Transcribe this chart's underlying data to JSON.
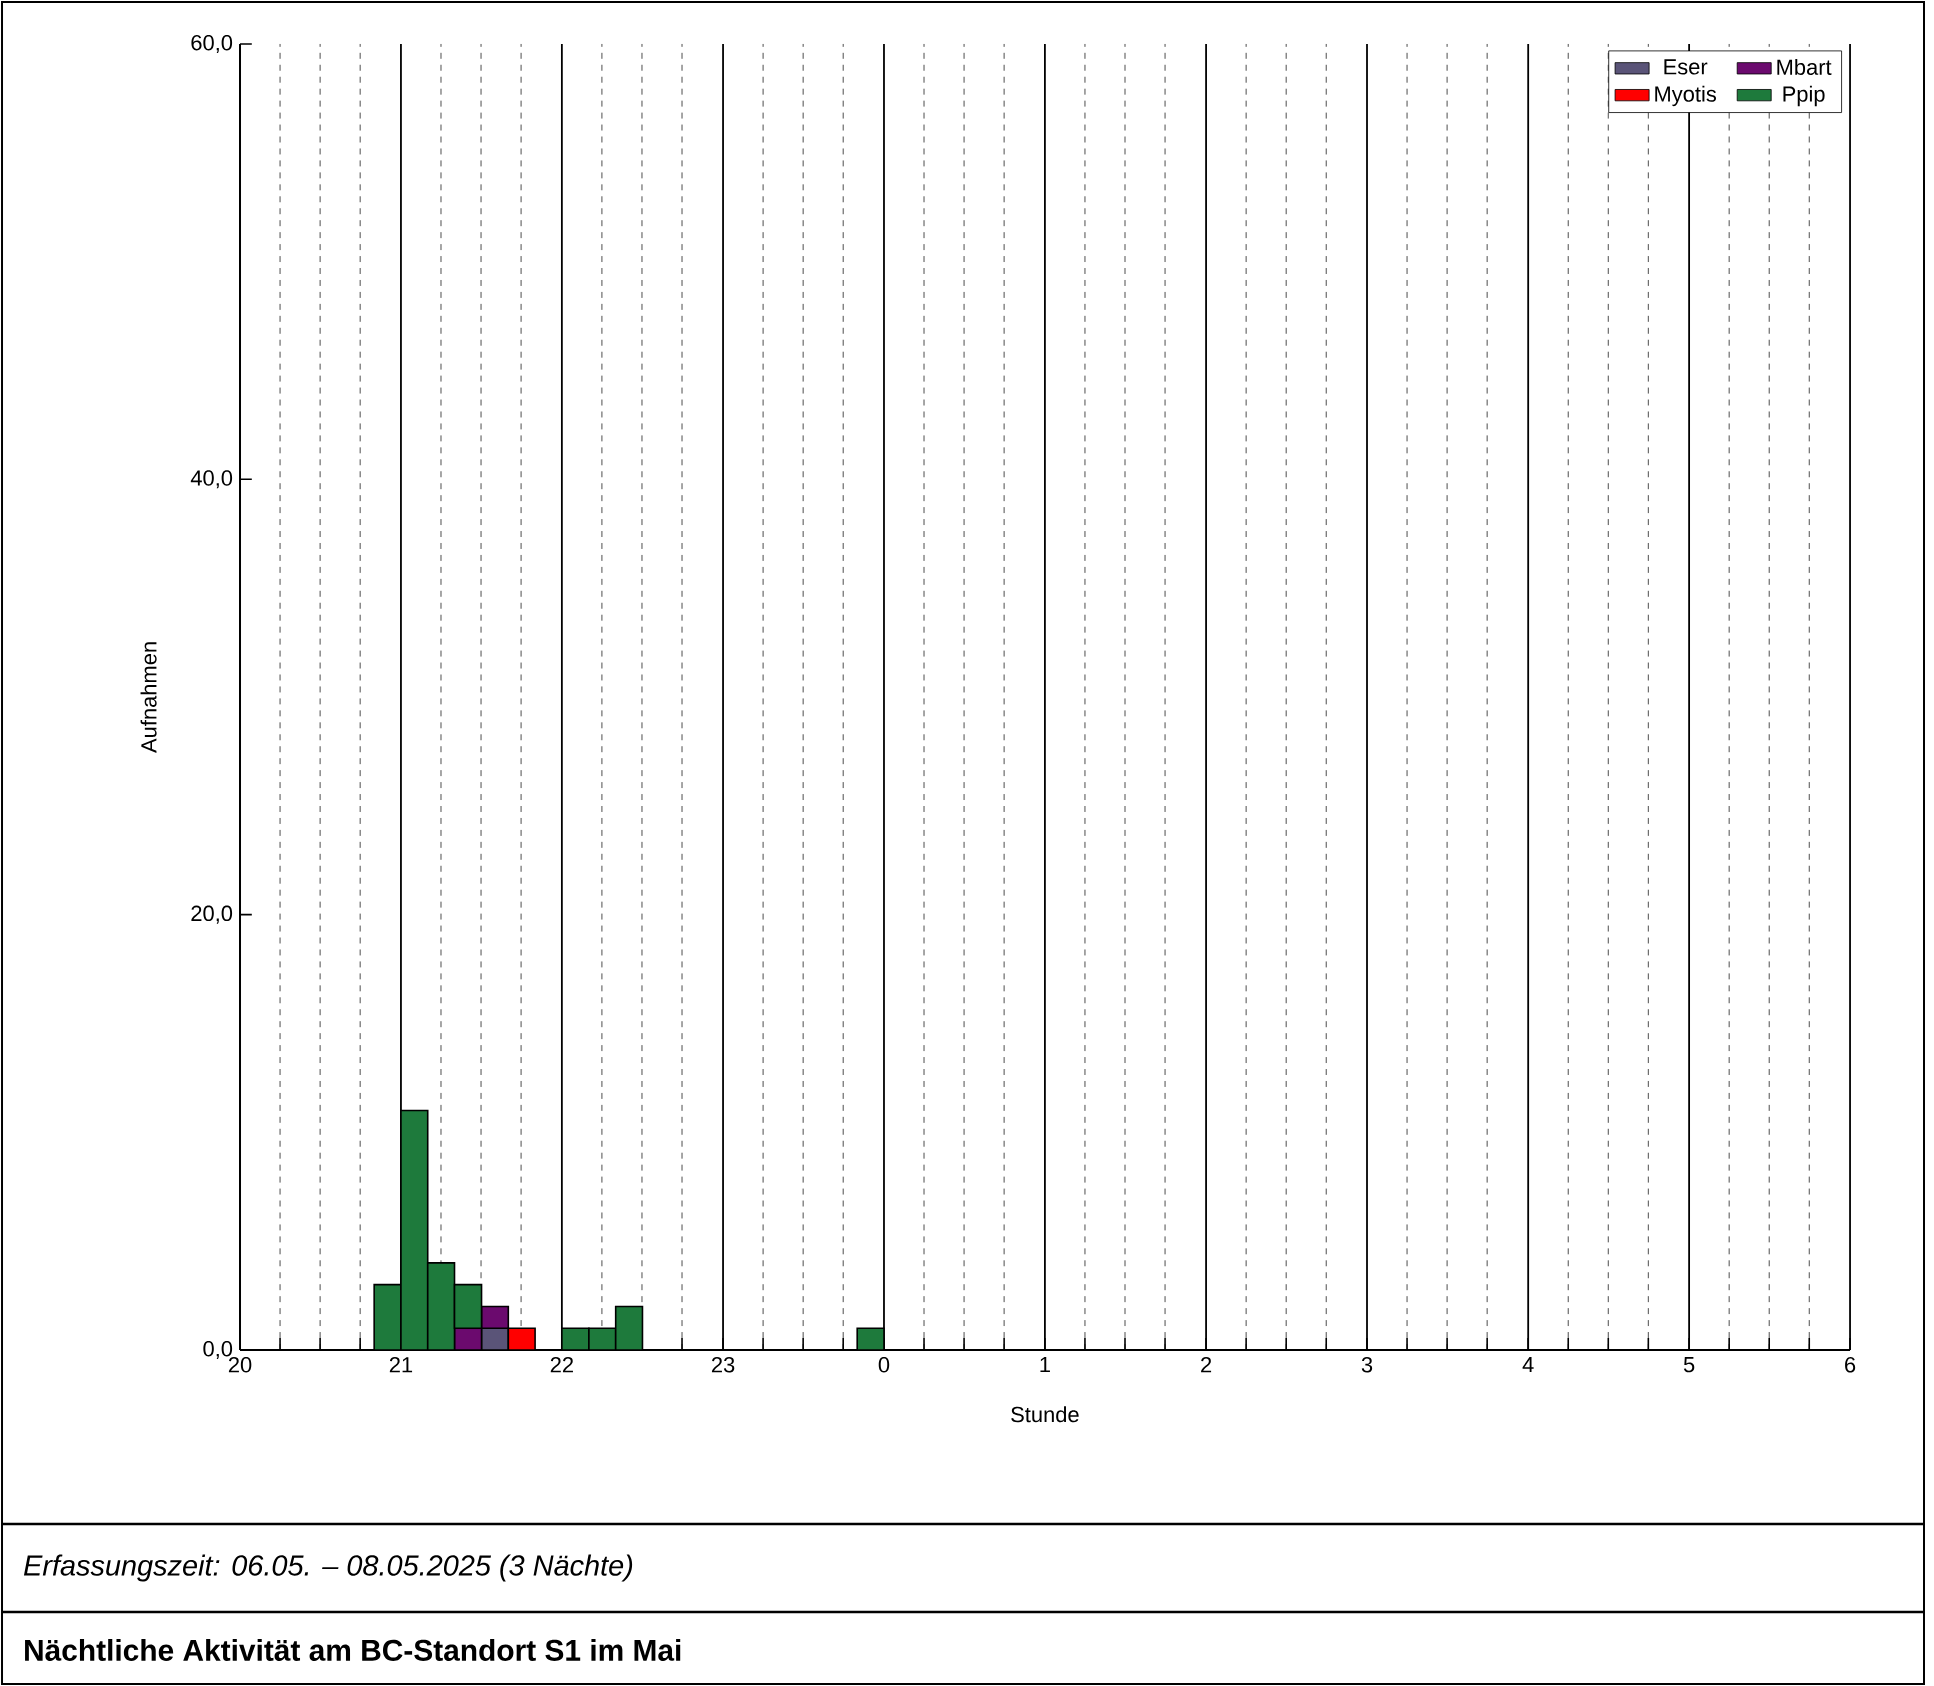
{
  "chart_data": {
    "type": "bar",
    "title": "Nächtliche Aktivität am BC-Standort S1 im Mai",
    "annotations": [
      "Erfassungszeit: 06.05. – 08.05.2025 (3 Nächte)"
    ],
    "xlabel": "Stunde",
    "ylabel": "Aufnahmen",
    "stacked": true,
    "x": [
      "2025-05-06T20:55",
      "2025-05-06T21:05",
      "2025-05-06T21:15",
      "2025-05-06T21:25",
      "2025-05-06T21:35",
      "2025-05-06T21:45",
      "2025-05-06T21:55",
      "2025-05-06T22:05",
      "2025-05-06T22:15",
      "2025-05-06T22:25",
      "2025-05-06T22:35",
      "2025-05-06T22:45",
      "2025-05-06T22:55",
      "2025-05-06T23:05",
      "2025-05-06T23:15",
      "2025-05-06T23:25",
      "2025-05-06T23:35",
      "2025-05-06T23:45",
      "2025-05-06T23:55"
    ],
    "series": [
      {
        "name": "Eser",
        "color": "#5a5478",
        "values": [
          0,
          0,
          0,
          0,
          1,
          0,
          0,
          0,
          0,
          0,
          0,
          0,
          0,
          0,
          0,
          0,
          0,
          0,
          0
        ]
      },
      {
        "name": "Mbart",
        "color": "#6b0a6e",
        "values": [
          0,
          0,
          0,
          1,
          1,
          0,
          0,
          0,
          0,
          0,
          0,
          0,
          0,
          0,
          0,
          0,
          0,
          0,
          0
        ]
      },
      {
        "name": "Myotis",
        "color": "#ff0000",
        "values": [
          0,
          0,
          0,
          0,
          0,
          1,
          0,
          0,
          0,
          0,
          0,
          0,
          0,
          0,
          0,
          0,
          0,
          0,
          0
        ]
      },
      {
        "name": "Ppip",
        "color": "#1e7a3c",
        "values": [
          3,
          11,
          4,
          2,
          0,
          0,
          0,
          1,
          1,
          2,
          0,
          0,
          0,
          0,
          0,
          0,
          0,
          0,
          1
        ]
      }
    ],
    "xlim": [
      "2025-05-06T20:00",
      "2025-05-07T06:00"
    ],
    "xticks": [
      {
        "value": "2025-05-06T20:00",
        "label": "20"
      },
      {
        "value": "2025-05-06T21:00",
        "label": "21"
      },
      {
        "value": "2025-05-06T22:00",
        "label": "22"
      },
      {
        "value": "2025-05-06T23:00",
        "label": "23"
      },
      {
        "value": "2025-05-07T00:00",
        "label": "0"
      },
      {
        "value": "2025-05-07T01:00",
        "label": "1"
      },
      {
        "value": "2025-05-07T02:00",
        "label": "2"
      },
      {
        "value": "2025-05-07T03:00",
        "label": "3"
      },
      {
        "value": "2025-05-07T04:00",
        "label": "4"
      },
      {
        "value": "2025-05-07T05:00",
        "label": "5"
      },
      {
        "value": "2025-05-07T06:00",
        "label": "6"
      }
    ],
    "ylim": [
      0,
      60
    ],
    "yticks": [
      {
        "value": 0,
        "label": "0,0"
      },
      {
        "value": 20,
        "label": "20,0"
      },
      {
        "value": 40,
        "label": "40,0"
      },
      {
        "value": 60,
        "label": "60,0"
      }
    ],
    "grid": "x",
    "legend": "top right"
  }
}
